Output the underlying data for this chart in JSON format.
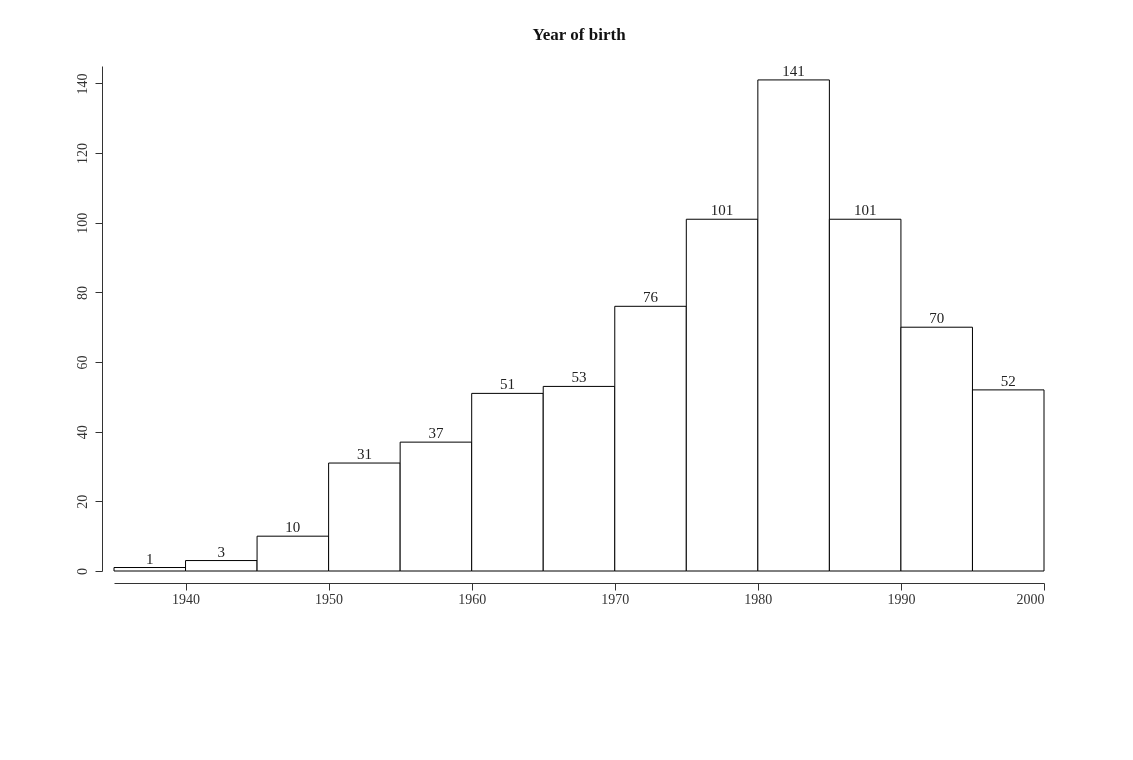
{
  "chart_data": {
    "type": "histogram",
    "title": "Year of birth",
    "bins": [
      1935,
      1940,
      1945,
      1950,
      1955,
      1960,
      1965,
      1970,
      1975,
      1980,
      1985,
      1990,
      1995,
      2000
    ],
    "values": [
      1,
      3,
      10,
      31,
      37,
      51,
      53,
      76,
      101,
      141,
      101,
      70,
      52
    ],
    "color": "#ffffff",
    "xlim": [
      1935,
      2000
    ],
    "xticks": [
      1940,
      1950,
      1960,
      1970,
      1980,
      1990,
      2000
    ],
    "ylim": [
      0,
      145
    ],
    "yticks": [
      0,
      20,
      40,
      60,
      80,
      100,
      120,
      140
    ],
    "data_labels": true,
    "grid": false
  }
}
